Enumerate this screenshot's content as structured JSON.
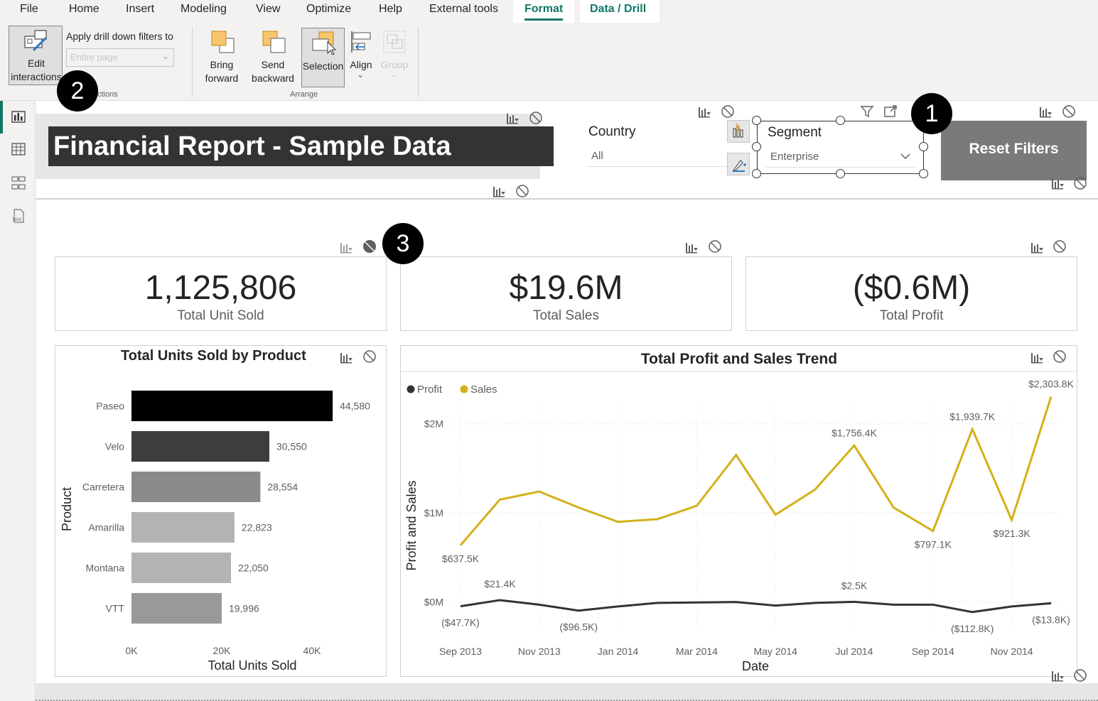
{
  "menu": {
    "items": [
      "File",
      "Home",
      "Insert",
      "Modeling",
      "View",
      "Optimize",
      "Help",
      "External tools",
      "Format",
      "Data / Drill"
    ],
    "active": "Format"
  },
  "ribbon": {
    "edit_interactions_line1": "Edit",
    "edit_interactions_line2": "interactions",
    "apply_drill_label": "Apply drill down filters to",
    "apply_drill_placeholder": "Entire page",
    "interactions_group_label": "ctions",
    "bring_forward_line1": "Bring",
    "bring_forward_line2": "forward",
    "send_backward_line1": "Send",
    "send_backward_line2": "backward",
    "selection_label": "Selection",
    "align_label": "Align",
    "group_label": "Group",
    "arrange_group_label": "Arrange"
  },
  "callouts": [
    "1",
    "2",
    "3"
  ],
  "report": {
    "title": "Financial Report - Sample Data",
    "country_label": "Country",
    "country_value": "All",
    "segment_label": "Segment",
    "segment_value": "Enterprise",
    "reset_button": "Reset Filters"
  },
  "cards": [
    {
      "value": "1,125,806",
      "label": "Total Unit Sold"
    },
    {
      "value": "$19.6M",
      "label": "Total Sales"
    },
    {
      "value": "($0.6M)",
      "label": "Total Profit"
    }
  ],
  "colors": {
    "accent": "#117865",
    "title_bg": "#333333",
    "reset_bg": "#7a7a7a",
    "sales_line": "#d4b01a",
    "profit_line": "#333333"
  },
  "chart_data": [
    {
      "type": "bar",
      "title": "Total Units Sold by Product",
      "xlabel": "Total Units Sold",
      "ylabel": "Product",
      "categories": [
        "Paseo",
        "Velo",
        "Carretera",
        "Amarilla",
        "Montana",
        "VTT"
      ],
      "values": [
        44580,
        30550,
        28554,
        22823,
        22050,
        19996
      ],
      "value_labels": [
        "44,580",
        "30,550",
        "28,554",
        "22,823",
        "22,050",
        "19,996"
      ],
      "bar_colors": [
        "#000000",
        "#3d3d3d",
        "#8a8a8a",
        "#b3b3b3",
        "#b3b3b3",
        "#999999"
      ],
      "xticks": [
        "0K",
        "20K",
        "40K"
      ],
      "xlim": [
        0,
        45000
      ]
    },
    {
      "type": "line",
      "title": "Total Profit and Sales Trend",
      "xlabel": "Date",
      "ylabel": "Profit and Sales",
      "legend": [
        "Profit",
        "Sales"
      ],
      "legend_position": "top-left",
      "x": [
        "2013-09",
        "2013-10",
        "2013-11",
        "2013-12",
        "2014-01",
        "2014-02",
        "2014-03",
        "2014-04",
        "2014-05",
        "2014-06",
        "2014-07",
        "2014-08",
        "2014-09",
        "2014-10",
        "2014-11",
        "2014-12"
      ],
      "xticks": [
        "Sep 2013",
        "Nov 2013",
        "Jan 2014",
        "Mar 2014",
        "May 2014",
        "Jul 2014",
        "Sep 2014",
        "Nov 2014"
      ],
      "yticks": [
        "$0M",
        "$1M",
        "$2M"
      ],
      "ylim": [
        -250000,
        2500000
      ],
      "series": [
        {
          "name": "Sales",
          "values": [
            637500,
            1150000,
            1240000,
            1060000,
            900000,
            930000,
            1080000,
            1650000,
            980000,
            1260000,
            1756400,
            1060000,
            797100,
            1939700,
            921300,
            2303800
          ],
          "labels": [
            {
              "index": 0,
              "text": "$637.5K"
            },
            {
              "index": 10,
              "text": "$1,756.4K"
            },
            {
              "index": 12,
              "text": "$797.1K"
            },
            {
              "index": 13,
              "text": "$1,939.7K"
            },
            {
              "index": 14,
              "text": "$921.3K"
            },
            {
              "index": 15,
              "text": "$2,303.8K"
            }
          ]
        },
        {
          "name": "Profit",
          "values": [
            -47700,
            21400,
            -30000,
            -96500,
            -50000,
            -10000,
            -5000,
            0,
            -40000,
            -10000,
            2500,
            -30000,
            -30000,
            -112800,
            -50000,
            -13800
          ],
          "labels": [
            {
              "index": 0,
              "text": "($47.7K)"
            },
            {
              "index": 1,
              "text": "$21.4K"
            },
            {
              "index": 3,
              "text": "($96.5K)"
            },
            {
              "index": 10,
              "text": "$2.5K"
            },
            {
              "index": 13,
              "text": "($112.8K)"
            },
            {
              "index": 15,
              "text": "($13.8K)"
            }
          ]
        }
      ]
    }
  ]
}
